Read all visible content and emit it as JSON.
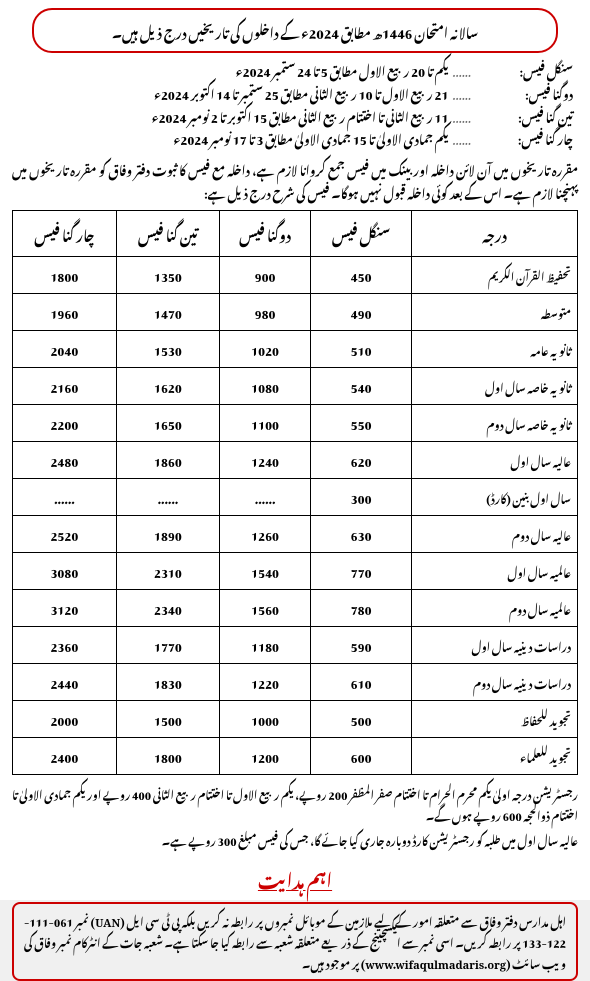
{
  "header": "سالانہ امتحان 1446ھ مطابق 2024ء کے داخلوں کی تاریخیں درج ذیل ہیں۔",
  "dates": [
    {
      "label": "سنگل فیس:",
      "dots": "......",
      "value": "یکم تا 20 ربیع الاول مطابق 5 تا 24 ستمبر 2024ء"
    },
    {
      "label": "دوگنا فیس:",
      "dots": "......",
      "value": "21 ربیع الاول تا 10 ربیع الثانی مطابق 25 ستمبر تا 14 اکتوبر 2024ء"
    },
    {
      "label": "تین گنا فیس:",
      "dots": "......",
      "value": "11 ربیع الثانی تا اختتام ربیع الثانی مطابق 15 اکتوبر تا 2 نومبر 2024ء"
    },
    {
      "label": "چار گنا فیس:",
      "dots": "......",
      "value": "یکم جمادی الاولیٰ تا 15 جمادی الاولیٰ مطابق 3 تا 17 نومبر 2024ء"
    }
  ],
  "note": "مقررہ تاریخوں میں آن لائن داخلہ اور بینک میں فیس جمع کروانا لازم ہے، داخلہ مع فیس کا ثبوت دفتر وفاق کو مقررہ تاریخوں میں پہنچنا لازم ہے۔ اس کے بعد کوئی داخلہ قبول نہیں ہوگا۔ فیس کی شرح درج ذیل ہے:",
  "table": {
    "headers": [
      "درجہ",
      "سنگل فیس",
      "دوگنا فیس",
      "تین گنا فیس",
      "چار گنا فیس"
    ],
    "rows": [
      [
        "تحفیظ القرآن الکریم",
        "450",
        "900",
        "1350",
        "1800"
      ],
      [
        "متوسطہ",
        "490",
        "980",
        "1470",
        "1960"
      ],
      [
        "ثانویہ عامہ",
        "510",
        "1020",
        "1530",
        "2040"
      ],
      [
        "ثانویہ خاصہ سال اول",
        "540",
        "1080",
        "1620",
        "2160"
      ],
      [
        "ثانویہ خاصہ سال دوم",
        "550",
        "1100",
        "1650",
        "2200"
      ],
      [
        "عالیہ سال اول",
        "620",
        "1240",
        "1860",
        "2480"
      ],
      [
        "سال اول بنین (کارڈ)",
        "300",
        "......",
        "......",
        "......"
      ],
      [
        "عالیہ سال دوم",
        "630",
        "1260",
        "1890",
        "2520"
      ],
      [
        "عالمیہ سال اول",
        "770",
        "1540",
        "2310",
        "3080"
      ],
      [
        "عالمیہ سال دوم",
        "780",
        "1560",
        "2340",
        "3120"
      ],
      [
        "دراسات دینیہ سال اول",
        "590",
        "1180",
        "1770",
        "2360"
      ],
      [
        "دراسات دینیہ سال دوم",
        "610",
        "1220",
        "1830",
        "2440"
      ],
      [
        "تجوید للحفاظ",
        "500",
        "1000",
        "1500",
        "2000"
      ],
      [
        "تجوید للعلماء",
        "600",
        "1200",
        "1800",
        "2400"
      ]
    ]
  },
  "footer1": "رجسٹریشن درجہ اولیٰ یکم محرم الحرام تا اختتام صفر المظفر 200 روپے، یکم ربیع الاول تا اختتام ربیع الثانی 400 روپے اور یکم جمادی الاولیٰ تا اختتام ذوالحجہ 600 روپے ہوں گے۔",
  "footer2": "عالیہ سال اول میں طلبہ کو رجسٹریشن کارڈ دوبارہ جاری کیا جائے گا، جس کی فیس مبلغ 300 روپے ہے۔",
  "important_heading": "اہم ہدایت",
  "instruction": "اہل مدارس دفتر وفاق سے متعلقہ امور کے لیے ملازمین کے موبائل نمبروں پر رابطہ نہ کریں بلکہ پی ٹی سی ایل (UAN) نمبر 061-111-122-133 پر رابطہ کریں۔ اسی نمبر سے ایکسچینج کے ذریعے متعلقہ شعبہ سے رابطہ کیا جا سکتا ہے۔ شعبہ جات کے انٹرکام نمبر وفاق کی ویب سائٹ (www.wifaqulmadaris.org) پر موجود ہیں۔"
}
